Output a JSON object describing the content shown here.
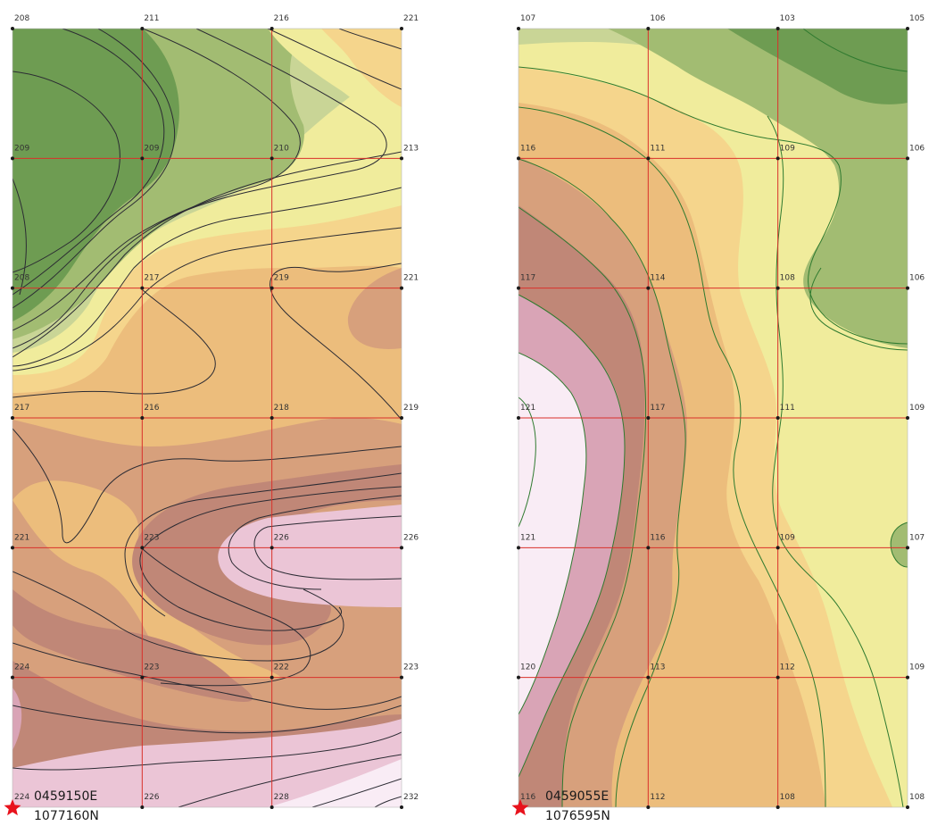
{
  "colors": {
    "background": "#ffffff",
    "grid_line": "#d9302a",
    "node_dot": "#1a1a1a",
    "marker": "#e8121c",
    "contour_line_left": "#2b2b33",
    "contour_line_right": "#2f7a2f",
    "zone_dark_green": "#6e9c52",
    "zone_mid_green": "#a2bc72",
    "zone_light_green": "#c9d596",
    "zone_pale_yellow": "#f0ec9c",
    "zone_light_orange": "#f5d58c",
    "zone_orange": "#ecbd7c",
    "zone_tan": "#d7a07c",
    "zone_brown": "#c08777",
    "zone_rose": "#d9a4b6",
    "zone_light_pink": "#ebc5d6",
    "zone_very_light_pink": "#f9ecf5"
  },
  "left_map": {
    "grid_columns": 4,
    "grid_rows": 7,
    "node_values": [
      [
        "208",
        "211",
        "216",
        "221"
      ],
      [
        "209",
        "209",
        "210",
        "213"
      ],
      [
        "208",
        "217",
        "219",
        "221"
      ],
      [
        "217",
        "216",
        "218",
        "219"
      ],
      [
        "221",
        "223",
        "226",
        "226"
      ],
      [
        "224",
        "223",
        "222",
        "223"
      ],
      [
        "224",
        "226",
        "228",
        "232"
      ]
    ],
    "reference_easting": "0459150E",
    "reference_northing": "1077160N"
  },
  "right_map": {
    "grid_columns": 4,
    "grid_rows": 7,
    "node_values": [
      [
        "107",
        "106",
        "103",
        "105"
      ],
      [
        "116",
        "111",
        "109",
        "106"
      ],
      [
        "117",
        "114",
        "108",
        "106"
      ],
      [
        "121",
        "117",
        "111",
        "109"
      ],
      [
        "121",
        "116",
        "109",
        "107"
      ],
      [
        "120",
        "113",
        "112",
        "109"
      ],
      [
        "116",
        "112",
        "108",
        "108"
      ]
    ],
    "reference_easting": "0459055E",
    "reference_northing": "1076595N"
  }
}
